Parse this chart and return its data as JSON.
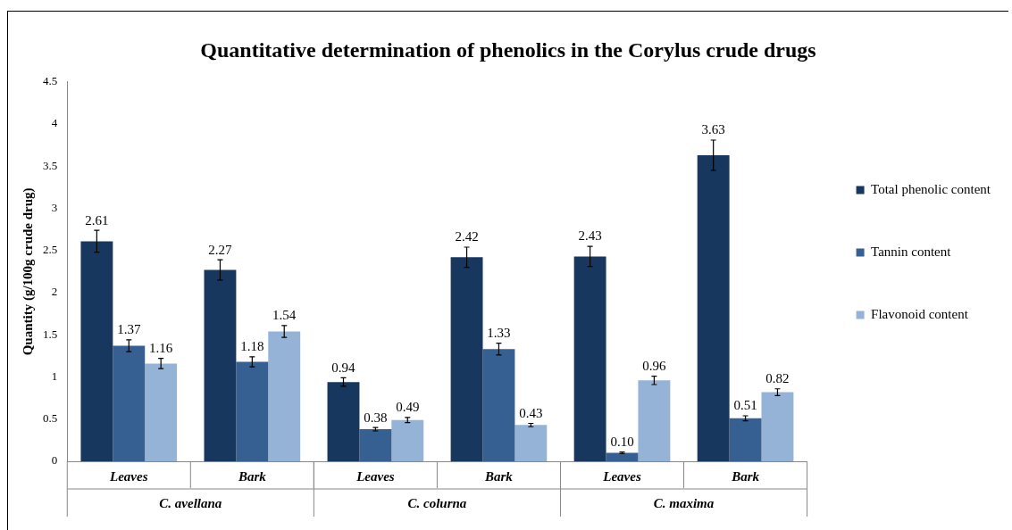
{
  "chart_data": {
    "type": "bar",
    "title": "Quantitative determination of phenolics in the Corylus crude drugs",
    "ylabel": "Quantity (g/100g crude drug)",
    "categories": [
      "Leaves",
      "Bark",
      "Leaves",
      "Bark",
      "Leaves",
      "Bark"
    ],
    "annotations": [
      "C. avellana",
      "C. colurna",
      "C. maxima"
    ],
    "series": [
      {
        "name": "Total phenolic content",
        "color": "#17375e",
        "values": [
          2.61,
          2.27,
          0.94,
          2.42,
          2.43,
          3.63
        ],
        "value_labels": [
          "2.61",
          "2.27",
          "0.94",
          "2.42",
          "2.43",
          "3.63"
        ],
        "errors": [
          0.13,
          0.12,
          0.05,
          0.12,
          0.12,
          0.18
        ]
      },
      {
        "name": "Tannin content",
        "color": "#366092",
        "values": [
          1.37,
          1.18,
          0.38,
          1.33,
          0.1,
          0.51
        ],
        "value_labels": [
          "1.37",
          "1.18",
          "0.38",
          "1.33",
          "0.10",
          "0.51"
        ],
        "errors": [
          0.07,
          0.06,
          0.02,
          0.07,
          0.01,
          0.03
        ]
      },
      {
        "name": "Flavonoid content",
        "color": "#95b3d7",
        "values": [
          1.16,
          1.54,
          0.49,
          0.43,
          0.96,
          0.82
        ],
        "value_labels": [
          "1.16",
          "1.54",
          "0.49",
          "0.43",
          "0.96",
          "0.82"
        ],
        "errors": [
          0.06,
          0.07,
          0.03,
          0.02,
          0.05,
          0.04
        ]
      }
    ],
    "ylim": [
      0,
      4.5
    ],
    "yticks": [
      0,
      0.5,
      1,
      1.5,
      2,
      2.5,
      3,
      3.5,
      4,
      4.5
    ],
    "legend": "right",
    "grid": false
  }
}
